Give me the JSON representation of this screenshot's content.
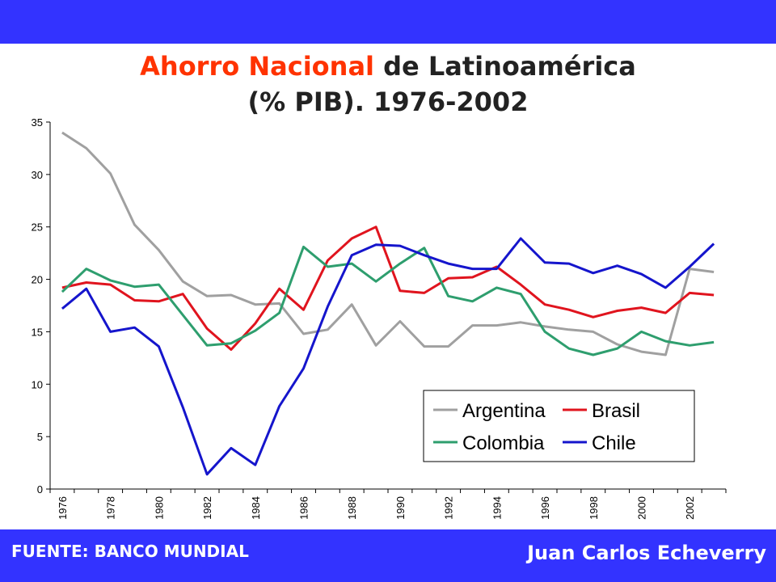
{
  "header": {
    "title_highlight": "Ahorro Nacional",
    "title_rest": "de Latinoamérica",
    "title_line2": "(% PIB). 1976-2002"
  },
  "footer": {
    "source": "FUENTE: BANCO MUNDIAL",
    "author": "Juan Carlos Echeverry"
  },
  "colors": {
    "band": "#3333ff",
    "title_highlight": "#ff3300",
    "Argentina": "#a0a0a0",
    "Brasil": "#e0141e",
    "Colombia": "#2e9e6e",
    "Chile": "#1515cc"
  },
  "chart_data": {
    "type": "line",
    "title": "Ahorro Nacional de Latinoamérica (% PIB). 1976-2002",
    "xlabel": "",
    "ylabel": "",
    "ylim": [
      0,
      35
    ],
    "yticks": [
      0,
      5,
      10,
      15,
      20,
      25,
      30,
      35
    ],
    "x": [
      1976,
      1977,
      1978,
      1979,
      1980,
      1981,
      1982,
      1983,
      1984,
      1985,
      1986,
      1987,
      1988,
      1989,
      1990,
      1991,
      1992,
      1993,
      1994,
      1995,
      1996,
      1997,
      1998,
      1999,
      2000,
      2001,
      2002,
      2003
    ],
    "xtick_labels": [
      "1976",
      "1978",
      "1980",
      "1982",
      "1984",
      "1986",
      "1988",
      "1990",
      "1992",
      "1994",
      "1996",
      "1998",
      "2000",
      "2002"
    ],
    "grid": false,
    "legend_position": "lower-right",
    "series": [
      {
        "name": "Argentina",
        "values": [
          34.0,
          32.5,
          30.1,
          25.2,
          22.8,
          19.8,
          18.4,
          18.5,
          17.6,
          17.7,
          14.8,
          15.2,
          17.6,
          13.7,
          16.0,
          13.6,
          13.6,
          15.6,
          15.6,
          15.9,
          15.5,
          15.2,
          15.0,
          13.8,
          13.1,
          12.8,
          21.0,
          20.7
        ]
      },
      {
        "name": "Brasil",
        "values": [
          19.2,
          19.7,
          19.5,
          18.0,
          17.9,
          18.6,
          15.3,
          13.3,
          15.8,
          19.1,
          17.1,
          21.8,
          23.9,
          25.0,
          18.9,
          18.7,
          20.1,
          20.2,
          21.2,
          19.5,
          17.6,
          17.1,
          16.4,
          17.0,
          17.3,
          16.8,
          18.7,
          18.5
        ]
      },
      {
        "name": "Colombia",
        "values": [
          18.8,
          21.0,
          19.9,
          19.3,
          19.5,
          16.6,
          13.7,
          13.9,
          15.1,
          16.8,
          23.1,
          21.2,
          21.5,
          19.8,
          21.5,
          23.0,
          18.4,
          17.9,
          19.2,
          18.6,
          15.0,
          13.4,
          12.8,
          13.4,
          15.0,
          14.1,
          13.7,
          14.0
        ]
      },
      {
        "name": "Chile",
        "values": [
          17.2,
          19.1,
          15.0,
          15.4,
          13.6,
          7.8,
          1.4,
          3.9,
          2.3,
          7.9,
          11.5,
          17.4,
          22.3,
          23.3,
          23.2,
          22.3,
          21.5,
          21.0,
          21.0,
          23.9,
          21.6,
          21.5,
          20.6,
          21.3,
          20.5,
          19.2,
          21.2,
          23.4
        ]
      }
    ]
  }
}
